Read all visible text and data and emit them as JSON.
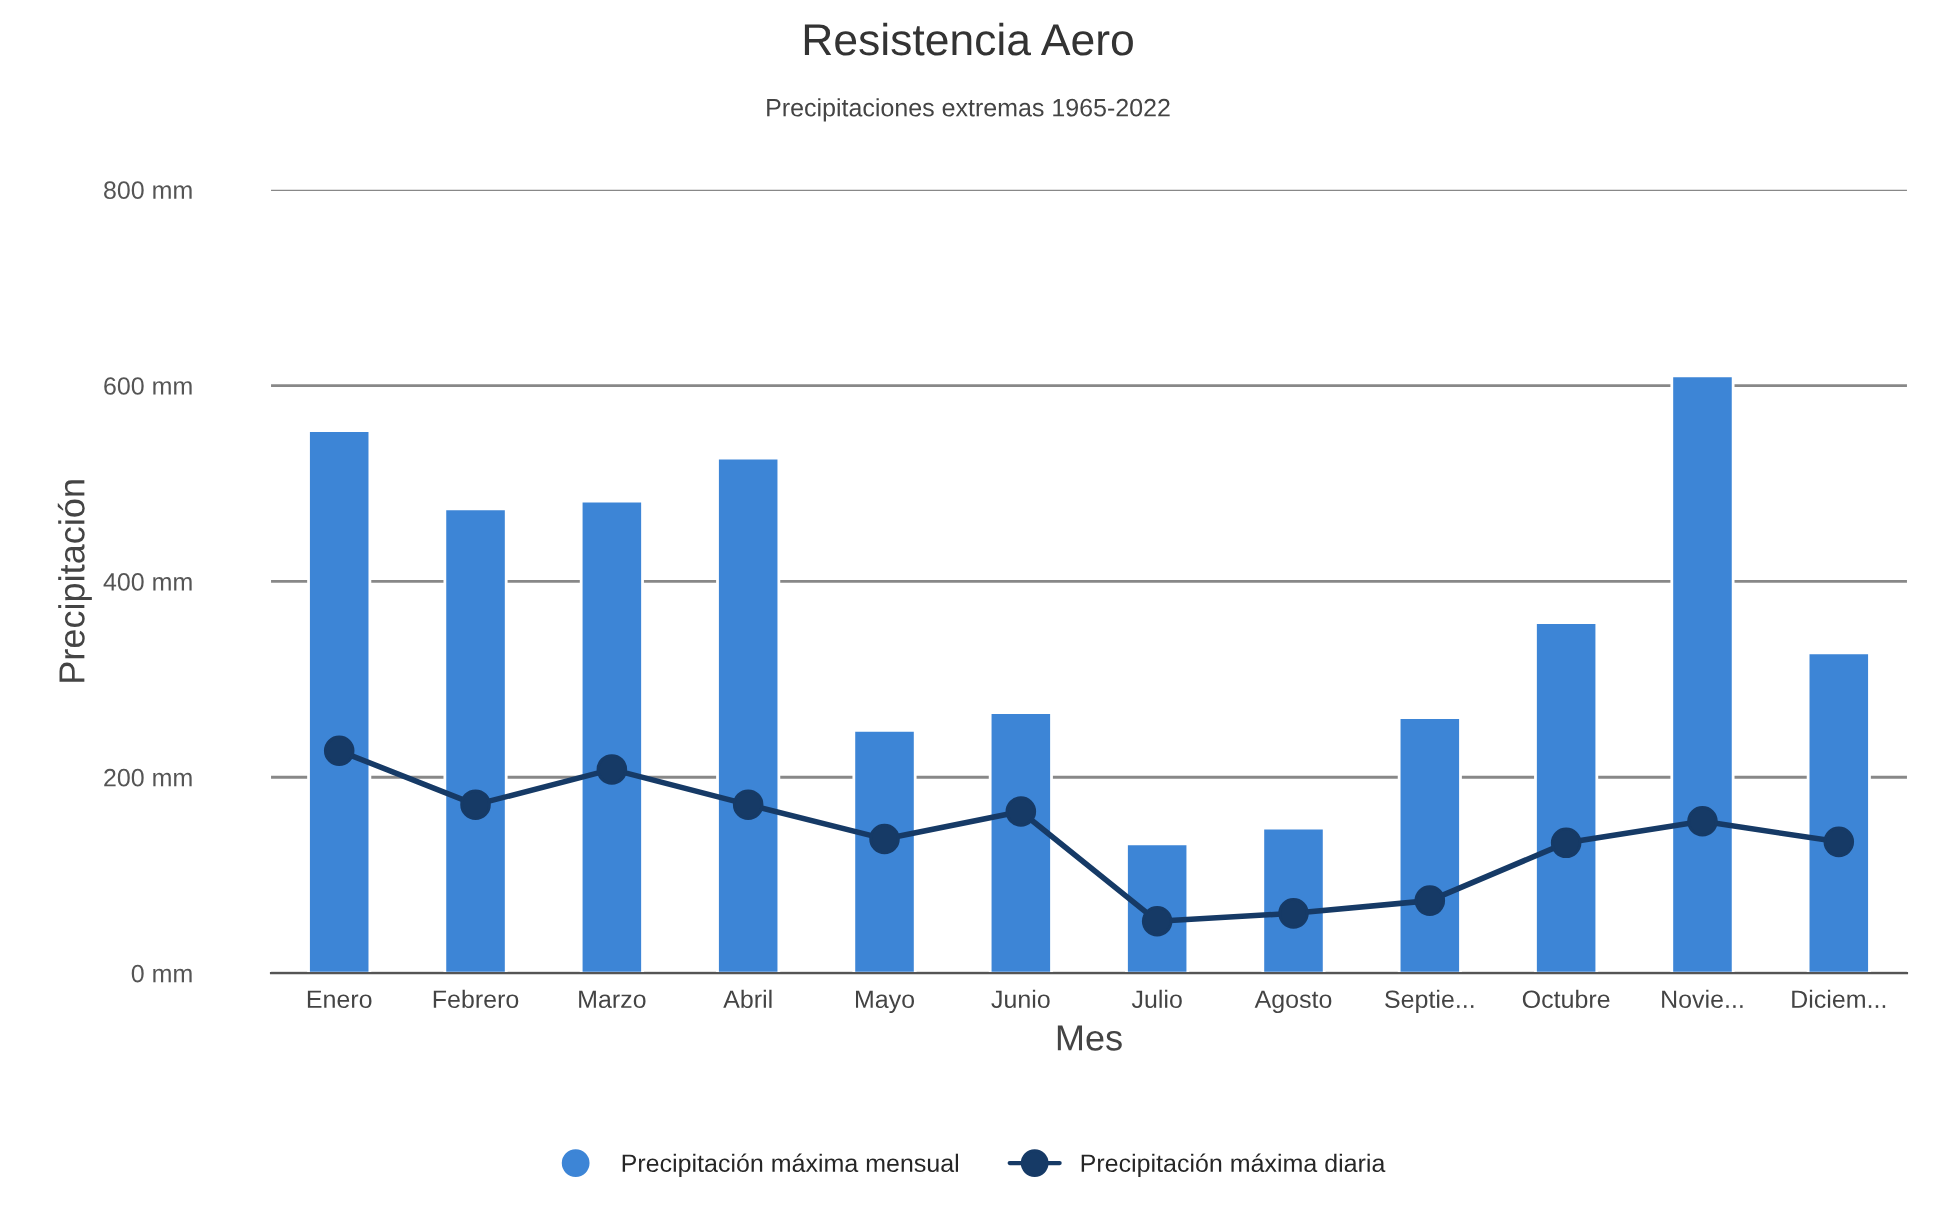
{
  "chart_data": {
    "type": "bar",
    "title": "Resistencia Aero",
    "subtitle": "Precipitaciones extremas 1965-2022",
    "xlabel": "Mes",
    "ylabel": "Precipitación",
    "categories": [
      "Enero",
      "Febrero",
      "Marzo",
      "Abril",
      "Mayo",
      "Junio",
      "Julio",
      "Agosto",
      "Septie...",
      "Octubre",
      "Novie...",
      "Diciem..."
    ],
    "series": [
      {
        "name": "Precipitación máxima mensual",
        "color": "#3d85d6",
        "values": [
          554,
          474,
          482,
          526,
          248,
          266,
          132,
          148,
          261,
          358,
          610,
          327
        ]
      },
      {
        "name": "Precipitación máxima diaria",
        "type": "line",
        "color": "#163a66",
        "marker": "circle",
        "line_style": "solid",
        "values": [
          227,
          172,
          208,
          172,
          137,
          165,
          53,
          61,
          74,
          133,
          155,
          134
        ]
      }
    ],
    "ylim": [
      0,
      800
    ],
    "yticks": [
      {
        "value": 0,
        "label": "0 mm"
      },
      {
        "value": 200,
        "label": "200 mm"
      },
      {
        "value": 400,
        "label": "400 mm"
      },
      {
        "value": 600,
        "label": "600 mm"
      },
      {
        "value": 800,
        "label": "800 mm"
      }
    ],
    "grid": "y",
    "legend": "bottom"
  }
}
